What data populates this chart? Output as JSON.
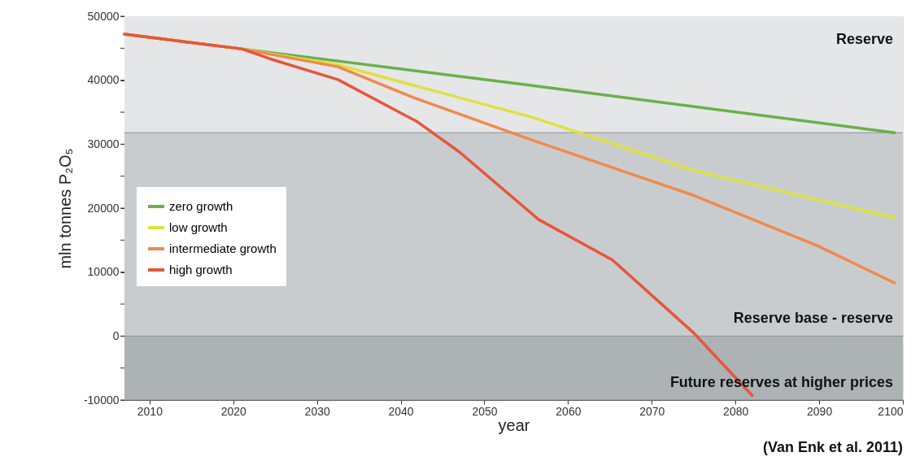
{
  "chart_data": {
    "type": "line",
    "xlabel": "year",
    "ylabel": "mln tonnes P₂O₅",
    "xlim": [
      2007,
      2100
    ],
    "xticks": [
      2010,
      2020,
      2030,
      2040,
      2050,
      2060,
      2070,
      2080,
      2090,
      2100
    ],
    "ylim": [
      -10000,
      50000
    ],
    "yticks": [
      -10000,
      {
        "value": -5000,
        "label": null
      },
      0,
      {
        "value": 5000,
        "label": null
      },
      10000,
      {
        "value": 15000,
        "label": null
      },
      20000,
      {
        "value": 25000,
        "label": null
      },
      30000,
      {
        "value": 35000,
        "label": null
      },
      40000,
      {
        "value": 45000,
        "label": null
      },
      50000
    ],
    "bands": [
      {
        "axis": "y",
        "from": 31800,
        "to": 50000,
        "label": "Reserve",
        "color": "#e4e6e8"
      },
      {
        "axis": "y",
        "from": 0,
        "to": 31800,
        "label": "Reserve base - reserve",
        "color": "#c9cccf"
      },
      {
        "axis": "y",
        "from": -10000,
        "to": 0,
        "label": "Future reserves at higher prices",
        "color": "#adb2b5"
      }
    ],
    "series": [
      {
        "name": "zero growth",
        "color": "#6ab04c",
        "x": [
          2007,
          2021,
          2055,
          2099
        ],
        "values": [
          47200,
          44900,
          39300,
          31800
        ]
      },
      {
        "name": "low growth",
        "color": "#e0e040",
        "x": [
          2007,
          2021,
          2032.5,
          2056,
          2075,
          2099
        ],
        "values": [
          47200,
          44900,
          42400,
          34100,
          25900,
          18500
        ]
      },
      {
        "name": "intermediate growth",
        "color": "#f08a4b",
        "x": [
          2007,
          2021,
          2032.5,
          2041.5,
          2056,
          2075,
          2090,
          2099
        ],
        "values": [
          47200,
          44900,
          42100,
          37300,
          30500,
          22000,
          14000,
          8300
        ]
      },
      {
        "name": "high growth",
        "color": "#e8553a",
        "x": [
          2007,
          2021,
          2024.5,
          2032.5,
          2042,
          2047,
          2056.5,
          2065.3,
          2075,
          2082
        ],
        "values": [
          47200,
          44900,
          43300,
          40100,
          33500,
          28800,
          18200,
          11900,
          500,
          -9300
        ]
      }
    ],
    "legend": "left",
    "annotations": [
      "(Van Enk et al. 2011)"
    ]
  }
}
